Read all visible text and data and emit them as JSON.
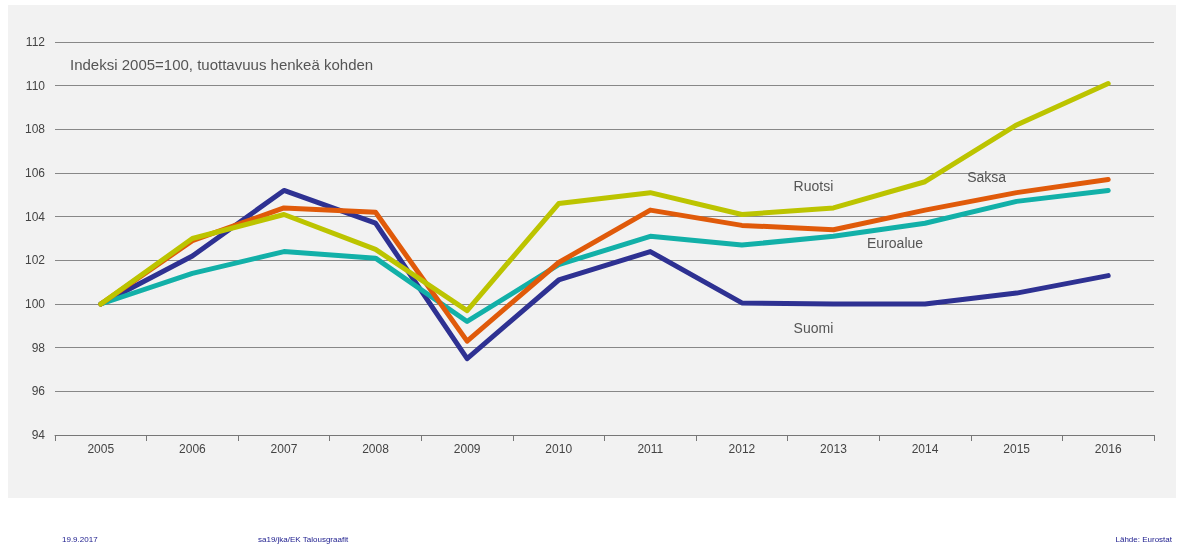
{
  "chart_data": {
    "type": "line",
    "ylabel": "Indeksi 2005=100, tuottavuus henkeä kohden",
    "categories": [
      "2005",
      "2006",
      "2007",
      "2008",
      "2009",
      "2010",
      "2011",
      "2012",
      "2013",
      "2014",
      "2015",
      "2016"
    ],
    "series": [
      {
        "name": "Ruotsi",
        "color": "#bcc400",
        "values": [
          100,
          103,
          104.1,
          102.5,
          99.7,
          104.6,
          105.1,
          104.1,
          104.4,
          105.6,
          108.2,
          110.1
        ]
      },
      {
        "name": "Saksa",
        "color": "#e05a0a",
        "values": [
          100,
          102.9,
          104.4,
          104.2,
          98.3,
          101.9,
          104.3,
          103.6,
          103.4,
          104.3,
          105.1,
          105.7
        ]
      },
      {
        "name": "Euroalue",
        "color": "#12b0a8",
        "values": [
          100,
          101.4,
          102.4,
          102.1,
          99.2,
          101.8,
          103.1,
          102.7,
          103.1,
          103.7,
          104.7,
          105.2
        ]
      },
      {
        "name": "Suomi",
        "color": "#2e3192",
        "values": [
          100,
          102.2,
          105.2,
          103.7,
          97.5,
          101.1,
          102.4,
          100.05,
          100,
          100,
          100.5,
          101.3
        ]
      }
    ],
    "ylim": [
      94,
      112
    ],
    "yticks": [
      94,
      96,
      98,
      100,
      102,
      104,
      106,
      108,
      110,
      112
    ],
    "grid": "y",
    "legend": false,
    "marker": "none",
    "line_style": "solid",
    "annotations": [
      "19.9.2017",
      "sa19/jka/EK Talousgraafit",
      "Lähde: Eurostat"
    ]
  }
}
